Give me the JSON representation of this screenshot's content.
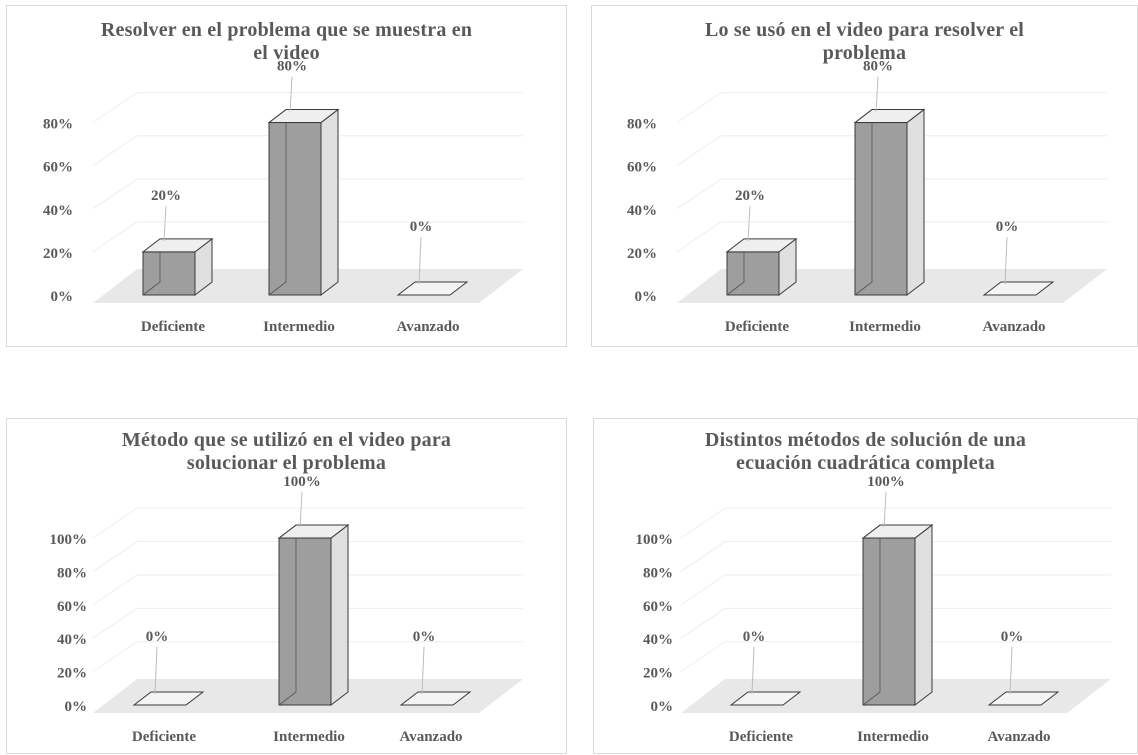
{
  "chart_data": [
    {
      "type": "bar",
      "title_lines": [
        "Resolver en el problema que se muestra en",
        "el video"
      ],
      "categories": [
        "Deficiente",
        "Intermedio",
        "Avanzado"
      ],
      "values": [
        20,
        80,
        0
      ],
      "value_labels": [
        "20%",
        "80%",
        "0%"
      ],
      "ticks": [
        "0%",
        "20%",
        "40%",
        "60%",
        "80%"
      ],
      "ylim": [
        0,
        90
      ],
      "grid": true,
      "three_d": true
    },
    {
      "type": "bar",
      "title_lines": [
        "Lo se usó en el video para resolver el",
        "problema"
      ],
      "categories": [
        "Deficiente",
        "Intermedio",
        "Avanzado"
      ],
      "values": [
        20,
        80,
        0
      ],
      "value_labels": [
        "20%",
        "80%",
        "0%"
      ],
      "ticks": [
        "0%",
        "20%",
        "40%",
        "60%",
        "80%"
      ],
      "ylim": [
        0,
        90
      ],
      "grid": true,
      "three_d": true
    },
    {
      "type": "bar",
      "title_lines": [
        "Método que se utilizó en el video para",
        "solucionar el problema"
      ],
      "categories": [
        "Deficiente",
        "Intermedio",
        "Avanzado"
      ],
      "values": [
        0,
        100,
        0
      ],
      "value_labels": [
        "0%",
        "100%",
        "0%"
      ],
      "ticks": [
        "0%",
        "20%",
        "40%",
        "60%",
        "80%",
        "100%"
      ],
      "ylim": [
        0,
        115
      ],
      "grid": true,
      "three_d": true
    },
    {
      "type": "bar",
      "title_lines": [
        "Distintos métodos de solución de una",
        "ecuación cuadrática completa"
      ],
      "categories": [
        "Deficiente",
        "Intermedio",
        "Avanzado"
      ],
      "values": [
        0,
        100,
        0
      ],
      "value_labels": [
        "0%",
        "100%",
        "0%"
      ],
      "ticks": [
        "0%",
        "20%",
        "40%",
        "60%",
        "80%",
        "100%"
      ],
      "ylim": [
        0,
        115
      ],
      "grid": true,
      "three_d": true
    }
  ],
  "colors": {
    "bar_front": "#9e9e9e",
    "bar_side": "#e0e0e0",
    "bar_top": "#efefef",
    "floor": "#e8e8e8",
    "text": "#595959",
    "grid": "#eeeeee"
  }
}
